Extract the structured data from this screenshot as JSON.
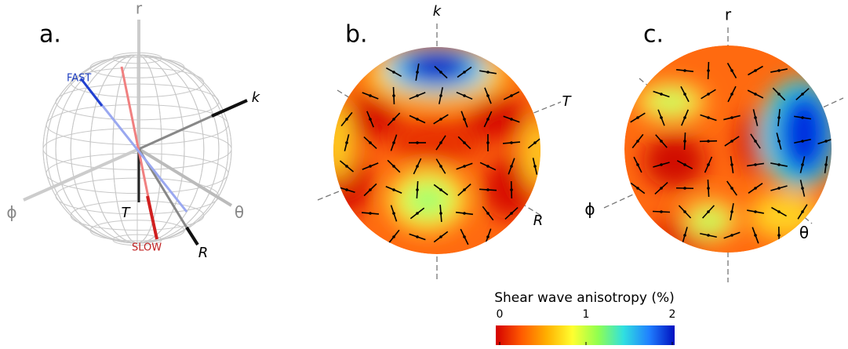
{
  "panels": [
    {
      "label": "a.",
      "axes": [
        "r",
        "k",
        "T",
        "R",
        "θ",
        "ϕ"
      ],
      "annotations": [
        "FAST",
        "SLOW"
      ]
    },
    {
      "label": "b.",
      "axes": [
        "k",
        "T",
        "R"
      ]
    },
    {
      "label": "c.",
      "axes": [
        "r",
        "ϕ",
        "θ"
      ]
    }
  ],
  "colorbar": {
    "title": "Shear wave anisotropy (%)",
    "lim": [
      0,
      2
    ],
    "ticks": [
      0,
      1,
      2
    ],
    "colors": [
      "#d40000",
      "#ff5a00",
      "#ffb000",
      "#ffff30",
      "#90ff50",
      "#30e0e0",
      "#2080ff",
      "#0010c0"
    ]
  }
}
